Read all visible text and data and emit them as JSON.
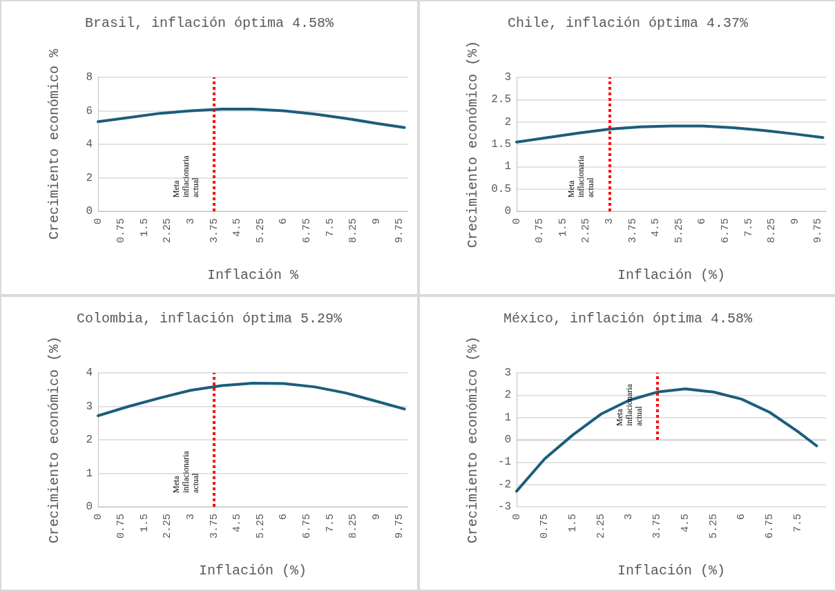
{
  "chart_data": [
    {
      "type": "line",
      "title": "Brasil, inflación óptima 4.58%",
      "xlabel": "Inflación %",
      "ylabel": "Crecimiento económico %",
      "x": [
        0,
        1,
        2,
        3,
        4,
        5,
        6,
        7,
        8,
        9,
        9.9
      ],
      "values": [
        5.35,
        5.6,
        5.85,
        6.0,
        6.1,
        6.1,
        6.0,
        5.8,
        5.55,
        5.25,
        5.0
      ],
      "color": "#1b5e7b",
      "xlim": [
        0,
        10
      ],
      "xticks": [
        0,
        0.75,
        1.5,
        2.25,
        3,
        3.75,
        4.5,
        5.25,
        6,
        6.75,
        7.5,
        8.25,
        9,
        9.75
      ],
      "ylim": [
        0,
        8
      ],
      "yticks": [
        0,
        2,
        4,
        6,
        8
      ],
      "grid": "y",
      "ref_lines": [
        {
          "axis": "x",
          "value": 3.75,
          "label": "Meta inflacionaria actual",
          "color": "#ff0000",
          "line_style": "dotted"
        }
      ]
    },
    {
      "type": "line",
      "title": "Chile, inflación óptima 4.37%",
      "xlabel": "Inflación (%)",
      "ylabel": "Crecimiento económico (%)",
      "x": [
        0,
        1,
        2,
        3,
        4,
        5,
        6,
        7,
        8,
        9,
        9.9
      ],
      "values": [
        1.55,
        1.65,
        1.75,
        1.84,
        1.89,
        1.91,
        1.91,
        1.87,
        1.81,
        1.73,
        1.65
      ],
      "color": "#1b5e7b",
      "xlim": [
        0,
        10
      ],
      "xticks": [
        0,
        0.75,
        1.5,
        2.25,
        3,
        3.75,
        4.5,
        5.25,
        6,
        6.75,
        7.5,
        8.25,
        9,
        9.75
      ],
      "ylim": [
        0,
        3
      ],
      "yticks": [
        0,
        0.5,
        1,
        1.5,
        2,
        2.5,
        3
      ],
      "grid": "y",
      "ref_lines": [
        {
          "axis": "x",
          "value": 3,
          "label": "Meta inflacionaria actual",
          "color": "#ff0000",
          "line_style": "dotted"
        }
      ]
    },
    {
      "type": "line",
      "title": "Colombia, inflación óptima 5.29%",
      "xlabel": "Inflación (%)",
      "ylabel": "Crecimiento económico (%)",
      "x": [
        0,
        1,
        2,
        3,
        4,
        5,
        6,
        7,
        8,
        9,
        9.9
      ],
      "values": [
        2.72,
        3.0,
        3.25,
        3.48,
        3.62,
        3.69,
        3.68,
        3.58,
        3.4,
        3.15,
        2.92
      ],
      "color": "#1b5e7b",
      "xlim": [
        0,
        10
      ],
      "xticks": [
        0,
        0.75,
        1.5,
        2.25,
        3,
        3.75,
        4.5,
        5.25,
        6,
        6.75,
        7.5,
        8.25,
        9,
        9.75
      ],
      "ylim": [
        0,
        4
      ],
      "yticks": [
        0,
        1,
        2,
        3,
        4
      ],
      "grid": "y",
      "ref_lines": [
        {
          "axis": "x",
          "value": 3.75,
          "label": "Meta inflacionaria actual",
          "color": "#ff0000",
          "line_style": "dotted"
        }
      ]
    },
    {
      "type": "line",
      "title": "México, inflación óptima 4.58%",
      "xlabel": "Inflación (%)",
      "ylabel": "Crecimiento económico (%)",
      "x": [
        0,
        0.75,
        1.5,
        2.25,
        3,
        3.75,
        4.5,
        5.25,
        6,
        6.75,
        7.5,
        8
      ],
      "values": [
        -2.3,
        -0.85,
        0.22,
        1.15,
        1.77,
        2.14,
        2.28,
        2.14,
        1.82,
        1.23,
        0.37,
        -0.27
      ],
      "color": "#1b5e7b",
      "xlim": [
        0,
        8.25
      ],
      "xticks": [
        0,
        0.75,
        1.5,
        2.25,
        3,
        3.75,
        4.5,
        5.25,
        6,
        6.75,
        7.5
      ],
      "ylim": [
        -3,
        3
      ],
      "yticks": [
        -3,
        -2,
        -1,
        0,
        1,
        2,
        3
      ],
      "grid": "y",
      "ref_lines": [
        {
          "axis": "x",
          "value": 3.75,
          "label": "Meta inflacionaria actual",
          "color": "#ff0000",
          "line_style": "dotted"
        }
      ]
    }
  ]
}
